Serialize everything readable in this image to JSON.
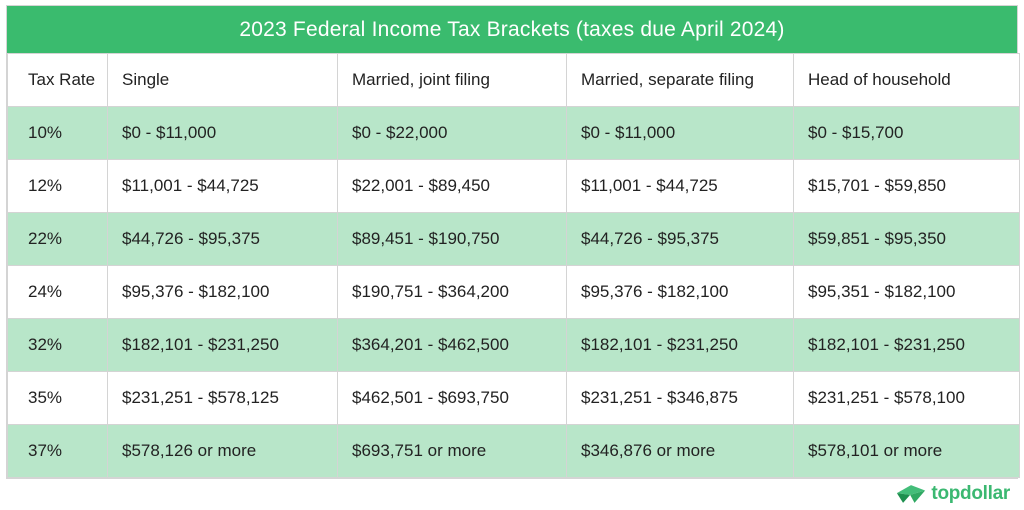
{
  "chart_data": {
    "type": "table",
    "title": "2023 Federal Income Tax Brackets (taxes due April 2024)",
    "columns": [
      "Tax Rate",
      "Single",
      "Married, joint filing",
      "Married, separate filing",
      "Head of household"
    ],
    "rows": [
      [
        "10%",
        "$0 - $11,000",
        "$0 - $22,000",
        "$0 - $11,000",
        "$0 - $15,700"
      ],
      [
        "12%",
        "$11,001 - $44,725",
        "$22,001 - $89,450",
        "$11,001 - $44,725",
        "$15,701 - $59,850"
      ],
      [
        "22%",
        "$44,726 - $95,375",
        "$89,451 - $190,750",
        "$44,726 - $95,375",
        "$59,851 - $95,350"
      ],
      [
        "24%",
        "$95,376 - $182,100",
        "$190,751 - $364,200",
        "$95,376 - $182,100",
        "$95,351 - $182,100"
      ],
      [
        "32%",
        "$182,101 - $231,250",
        "$364,201 - $462,500",
        "$182,101 - $231,250",
        "$182,101 - $231,250"
      ],
      [
        "35%",
        "$231,251 - $578,125",
        "$462,501 - $693,750",
        "$231,251 - $346,875",
        "$231,251 - $578,100"
      ],
      [
        "37%",
        "$578,126 or more",
        "$693,751 or more",
        "$346,876 or more",
        "$578,101 or more"
      ]
    ]
  },
  "branding": {
    "logo_text": "topdollar"
  },
  "colors": {
    "header_green": "#3abb6e",
    "row_green": "#b8e6c9",
    "border_gray": "#d4d4d4",
    "text_dark": "#222222",
    "title_text": "#ffffff",
    "logo_green": "#3bb871",
    "logo_dark_green": "#1e8f4e"
  }
}
